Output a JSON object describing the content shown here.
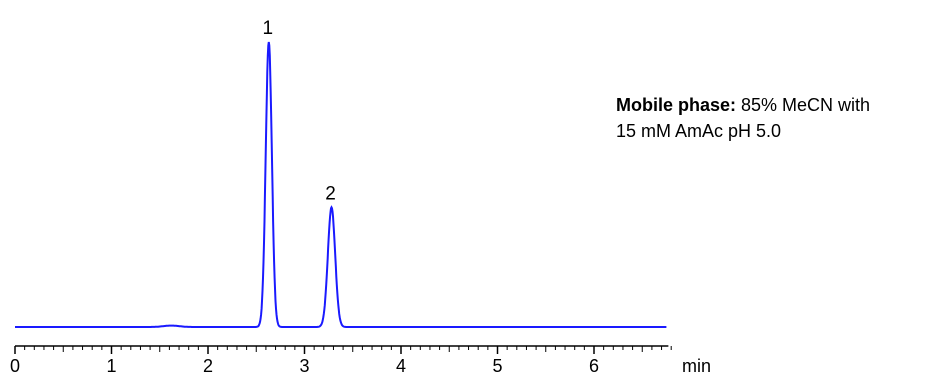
{
  "chart_data": {
    "type": "line",
    "title": "",
    "xlabel": "min",
    "ylabel": "",
    "xlim": [
      0,
      6.75
    ],
    "x_ticks": [
      0,
      1,
      2,
      3,
      4,
      5,
      6
    ],
    "x_tick_labels": [
      "0",
      "1",
      "2",
      "3",
      "4",
      "5",
      "6"
    ],
    "grid": false,
    "line_color": "#1a1aff",
    "baseline": 0,
    "peaks": [
      {
        "label": "1",
        "retention_time": 2.63,
        "height": 100
      },
      {
        "label": "2",
        "retention_time": 3.28,
        "height": 42
      }
    ],
    "minor_features": [
      {
        "time": 1.62,
        "height": 0.5
      }
    ]
  },
  "annotation": {
    "bold": "Mobile phase:",
    "line1_rest": " 85% MeCN with",
    "line2": "15 mM  AmAc pH 5.0"
  }
}
